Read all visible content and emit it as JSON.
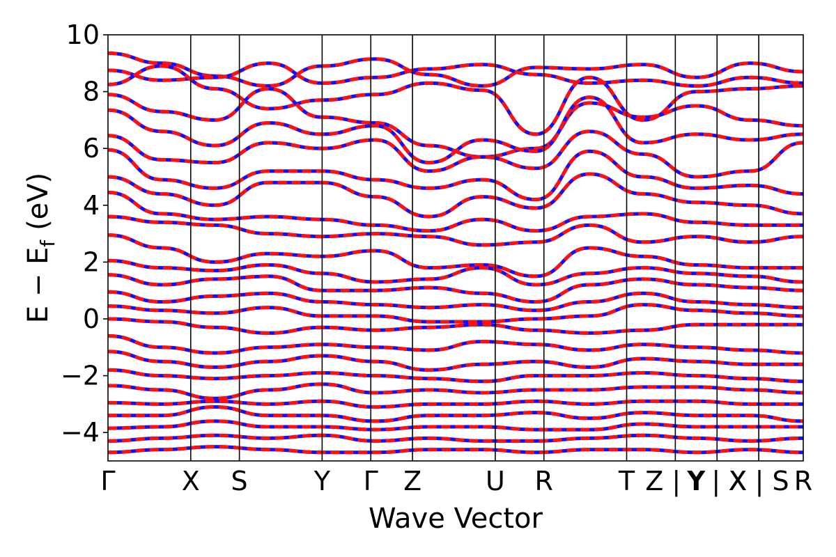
{
  "chart_data": {
    "type": "line",
    "title": "",
    "xlabel": "Wave Vector",
    "ylabel": "E − E",
    "ylabel_subscript": "f",
    "ylabel_unit": "(eV)",
    "ylim": [
      -5,
      10
    ],
    "yticks": [
      10,
      8,
      6,
      4,
      2,
      0,
      -2,
      -4
    ],
    "ytick_labels": [
      "10",
      "8",
      "6",
      "4",
      "2",
      "0",
      "−2",
      "−4"
    ],
    "xlim": [
      0,
      1
    ],
    "kpoints": [
      {
        "label": "Γ",
        "x": 0.0
      },
      {
        "label": "X",
        "x": 0.119
      },
      {
        "label": "S",
        "x": 0.189
      },
      {
        "label": "Y",
        "x": 0.308
      },
      {
        "label": "Γ",
        "x": 0.378
      },
      {
        "label": "Z",
        "x": 0.438
      },
      {
        "label": "U",
        "x": 0.557
      },
      {
        "label": "R",
        "x": 0.627
      },
      {
        "label": "T",
        "x": 0.746
      },
      {
        "label": "Z | Y",
        "x": 0.816
      },
      {
        "label": "Y | X",
        "x": 0.876
      },
      {
        "label": "X | S",
        "x": 0.936
      },
      {
        "label": "R",
        "x": 1.0
      }
    ],
    "grid": false,
    "legend": "none",
    "series_colors": {
      "primary": "#1010ff",
      "overlay": "#ff1010"
    },
    "series": [
      {
        "y": [
          9.35,
          9.0,
          8.55,
          8.2,
          8.9,
          9.15,
          8.6,
          8.2,
          8.85,
          8.8,
          8.95,
          8.5,
          9.0,
          8.7
        ]
      },
      {
        "y": [
          8.75,
          8.4,
          8.5,
          9.0,
          8.3,
          8.5,
          8.8,
          8.95,
          8.6,
          8.3,
          8.4,
          8.2,
          8.5,
          8.3
        ]
      },
      {
        "y": [
          8.25,
          8.9,
          8.1,
          7.4,
          7.7,
          7.9,
          8.3,
          8.05,
          6.5,
          8.5,
          7.0,
          8.0,
          8.1,
          8.2
        ]
      },
      {
        "y": [
          7.9,
          7.3,
          7.0,
          8.1,
          7.1,
          6.9,
          6.1,
          5.7,
          6.0,
          7.6,
          7.1,
          7.5,
          7.0,
          6.8
        ]
      },
      {
        "y": [
          7.35,
          6.6,
          6.1,
          6.9,
          6.5,
          6.8,
          5.5,
          6.3,
          5.9,
          7.8,
          6.2,
          6.5,
          6.3,
          6.5
        ]
      },
      {
        "y": [
          6.45,
          5.6,
          5.5,
          6.2,
          6.0,
          6.3,
          5.2,
          5.7,
          5.3,
          6.6,
          5.8,
          5.0,
          5.2,
          6.2
        ]
      },
      {
        "y": [
          5.95,
          4.9,
          4.6,
          5.2,
          5.2,
          4.9,
          4.6,
          4.9,
          4.2,
          5.9,
          5.0,
          4.6,
          4.7,
          4.4
        ]
      },
      {
        "y": [
          5.0,
          4.4,
          4.0,
          4.8,
          4.8,
          4.3,
          3.6,
          4.3,
          3.9,
          5.1,
          4.4,
          4.1,
          4.0,
          3.7
        ]
      },
      {
        "y": [
          4.45,
          3.7,
          3.5,
          3.6,
          3.5,
          3.3,
          3.1,
          3.5,
          3.1,
          3.6,
          3.7,
          3.4,
          3.3,
          3.3
        ]
      },
      {
        "y": [
          3.6,
          3.4,
          3.3,
          3.0,
          2.9,
          3.0,
          2.9,
          2.6,
          2.7,
          3.3,
          2.7,
          2.9,
          2.7,
          2.9
        ]
      },
      {
        "y": [
          2.95,
          2.5,
          2.0,
          2.3,
          2.2,
          2.4,
          1.8,
          1.9,
          1.5,
          2.5,
          2.2,
          1.9,
          1.8,
          1.8
        ]
      },
      {
        "y": [
          2.05,
          1.8,
          1.7,
          1.9,
          1.6,
          1.3,
          1.4,
          1.8,
          1.2,
          1.6,
          1.8,
          1.6,
          1.5,
          1.3
        ]
      },
      {
        "y": [
          1.55,
          1.2,
          1.4,
          1.5,
          1.0,
          1.0,
          1.1,
          0.9,
          0.6,
          1.2,
          1.4,
          1.2,
          1.1,
          1.0
        ]
      },
      {
        "y": [
          0.95,
          0.6,
          0.8,
          0.9,
          0.6,
          0.5,
          0.4,
          0.5,
          0.3,
          0.6,
          0.9,
          0.6,
          0.5,
          0.4
        ]
      },
      {
        "y": [
          0.45,
          0.3,
          0.2,
          0.4,
          0.1,
          0.1,
          -0.1,
          -0.1,
          0.0,
          0.1,
          0.5,
          0.3,
          0.2,
          0.1
        ]
      },
      {
        "y": [
          0.0,
          -0.1,
          -0.3,
          -0.5,
          -0.3,
          -0.4,
          -0.3,
          -0.2,
          -0.4,
          -0.5,
          -0.4,
          -0.2,
          -0.2,
          -0.2
        ]
      },
      {
        "y": [
          -0.6,
          -1.0,
          -1.2,
          -1.0,
          -0.9,
          -1.0,
          -1.1,
          -0.8,
          -0.9,
          -1.1,
          -0.9,
          -1.0,
          -1.1,
          -1.2
        ]
      },
      {
        "y": [
          -1.15,
          -1.5,
          -1.7,
          -1.5,
          -1.3,
          -1.5,
          -1.8,
          -1.6,
          -1.5,
          -1.7,
          -1.4,
          -1.5,
          -1.6,
          -1.6
        ]
      },
      {
        "y": [
          -1.8,
          -2.0,
          -2.1,
          -2.0,
          -1.9,
          -2.0,
          -2.1,
          -2.2,
          -2.0,
          -2.0,
          -1.9,
          -2.0,
          -2.1,
          -2.2
        ]
      },
      {
        "y": [
          -2.35,
          -2.5,
          -2.8,
          -2.5,
          -2.3,
          -2.6,
          -2.5,
          -2.6,
          -2.5,
          -2.5,
          -2.4,
          -2.4,
          -2.5,
          -2.6
        ]
      },
      {
        "y": [
          -2.95,
          -3.0,
          -2.9,
          -3.0,
          -2.9,
          -3.1,
          -3.0,
          -3.0,
          -2.9,
          -3.0,
          -2.9,
          -2.9,
          -3.0,
          -3.0
        ]
      },
      {
        "y": [
          -3.4,
          -3.4,
          -3.1,
          -3.4,
          -3.4,
          -3.6,
          -3.4,
          -3.4,
          -3.3,
          -3.5,
          -3.3,
          -3.4,
          -3.4,
          -3.6
        ]
      },
      {
        "y": [
          -3.85,
          -3.8,
          -3.6,
          -3.8,
          -3.8,
          -3.9,
          -3.8,
          -3.8,
          -3.9,
          -3.9,
          -3.7,
          -3.8,
          -3.8,
          -3.8
        ]
      },
      {
        "y": [
          -4.3,
          -4.2,
          -4.1,
          -4.2,
          -4.1,
          -4.3,
          -4.2,
          -4.3,
          -4.3,
          -4.2,
          -4.1,
          -4.2,
          -4.3,
          -4.2
        ]
      },
      {
        "y": [
          -4.7,
          -4.6,
          -4.5,
          -4.6,
          -4.7,
          -4.7,
          -4.6,
          -4.6,
          -4.7,
          -4.6,
          -4.6,
          -4.7,
          -4.6,
          -4.7
        ]
      }
    ]
  }
}
